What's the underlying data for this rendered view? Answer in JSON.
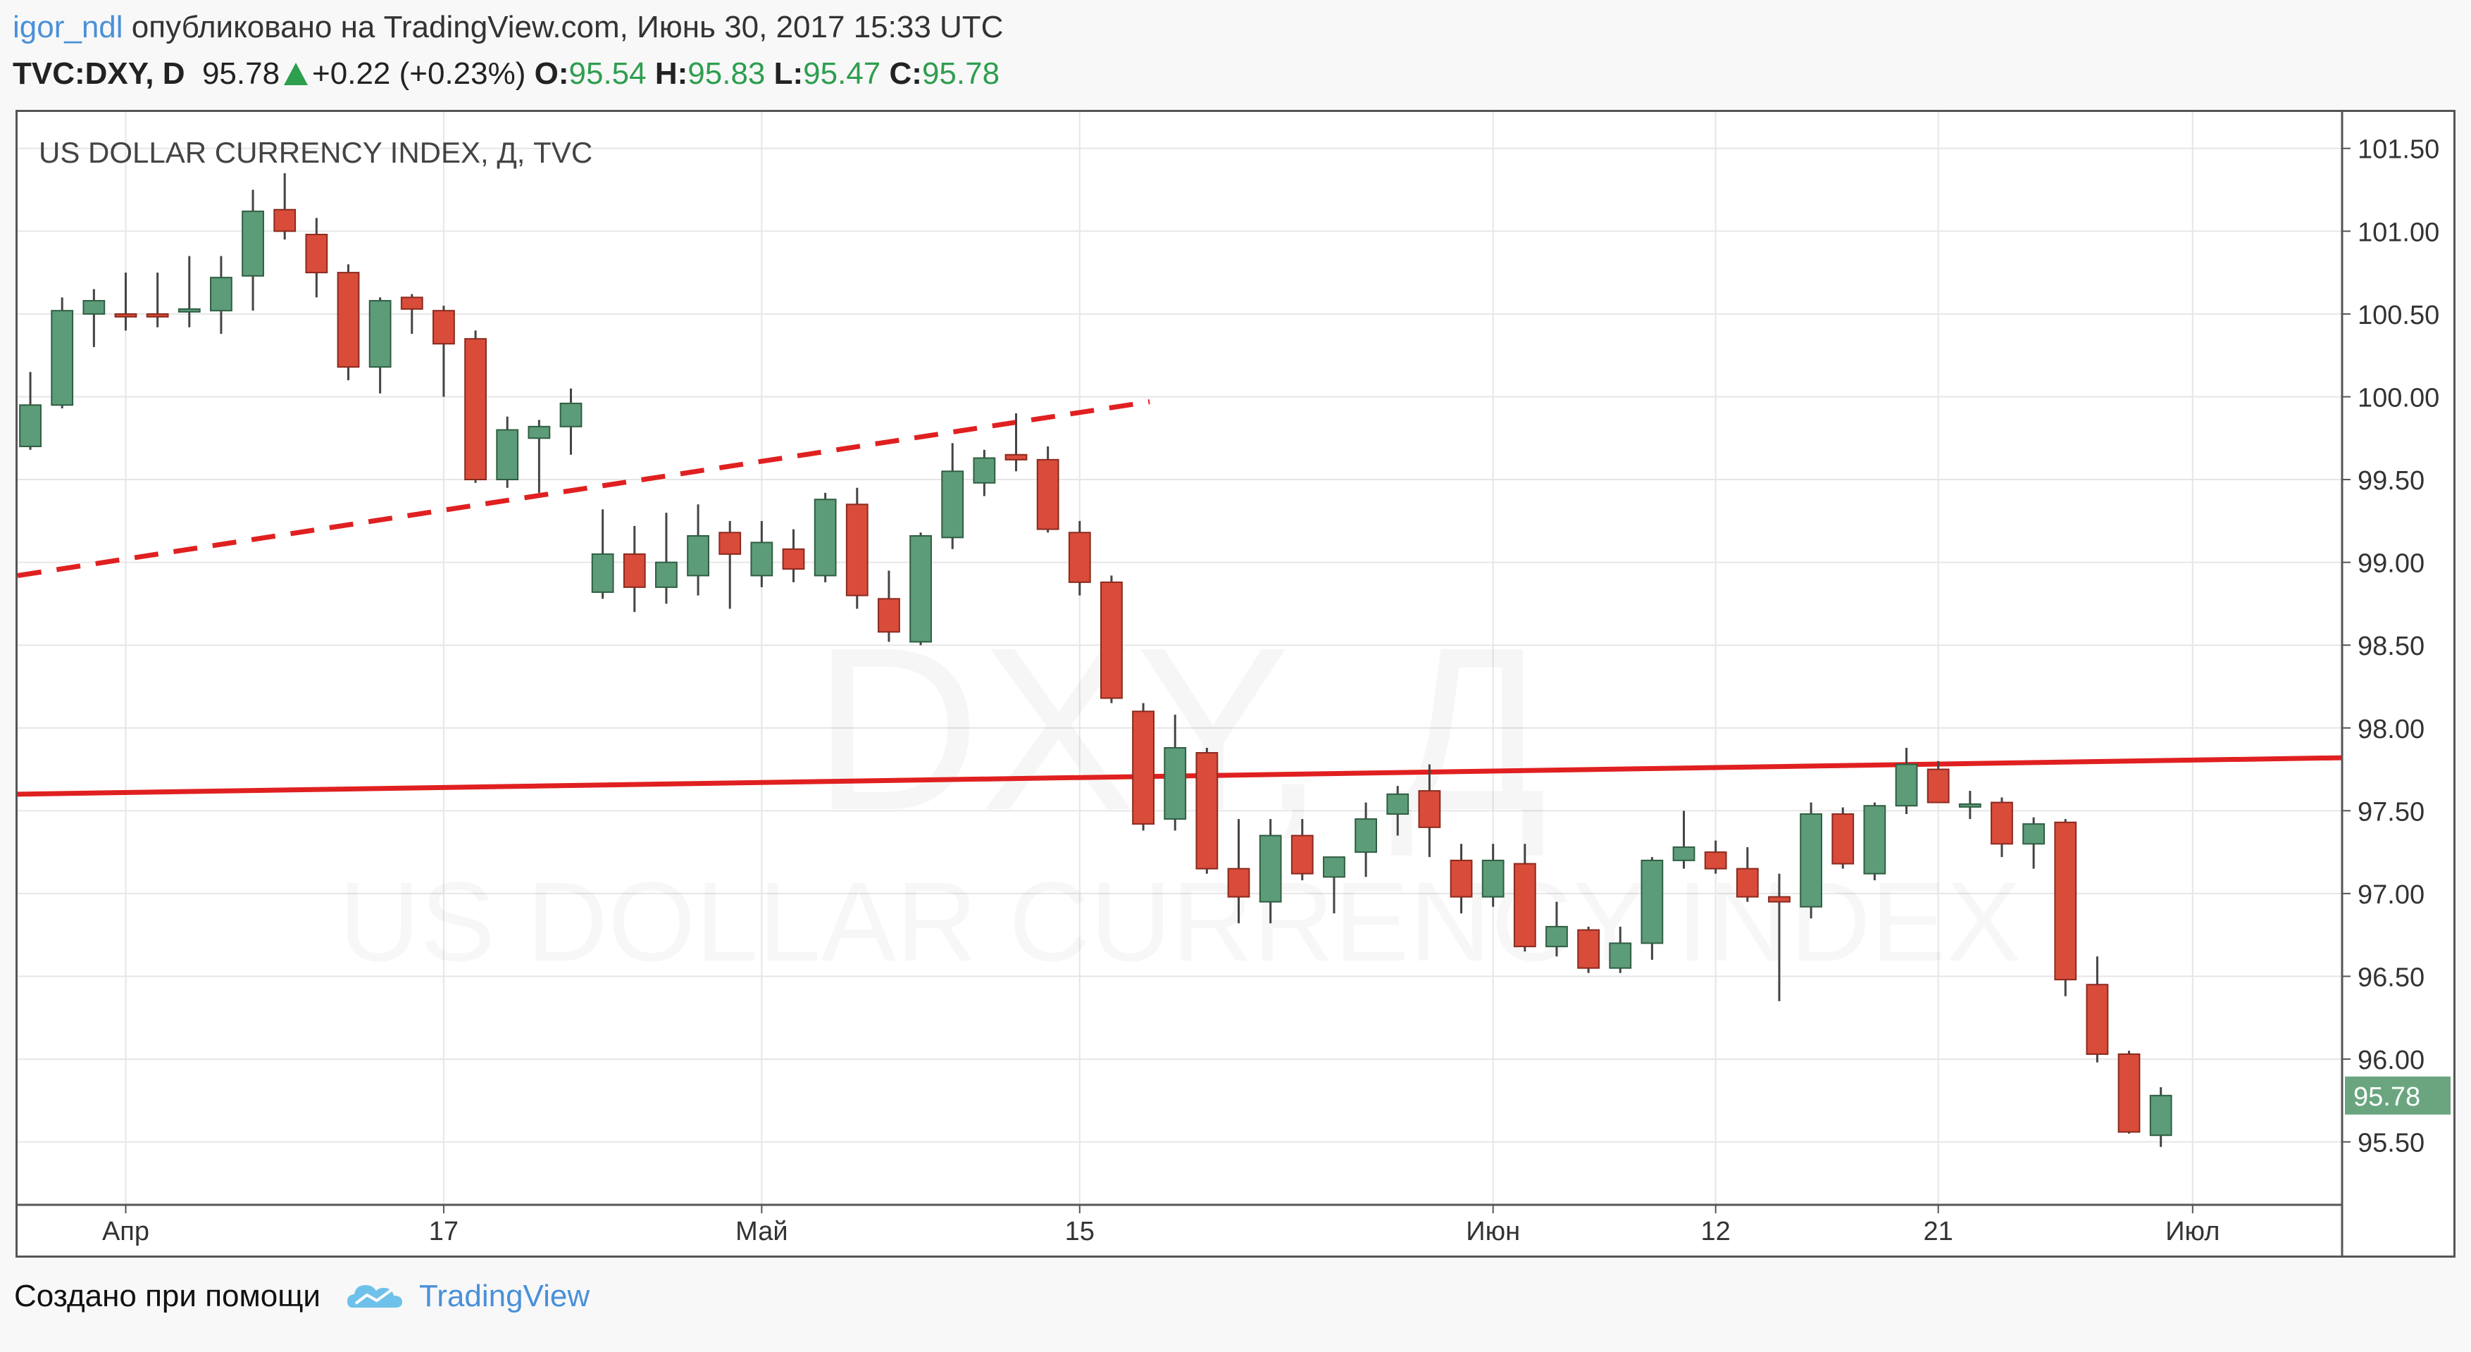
{
  "header": {
    "user": "igor_ndl",
    "published": "опубликовано на TradingView.com, Июнь 30, 2017 15:33 UTC",
    "symbol": "TVC:DXY, D",
    "last": "95.78",
    "change": "+0.22 (+0.23%)",
    "o_label": "O:",
    "o": "95.54",
    "h_label": "H:",
    "h": "95.83",
    "l_label": "L:",
    "l": "95.47",
    "c_label": "C:",
    "c": "95.78"
  },
  "footer": {
    "created_with": "Создано при помощи",
    "brand": "TradingView"
  },
  "colors": {
    "up": "#5d9c78",
    "down": "#d94c3a",
    "trendline": "#e02020",
    "grid": "#e6e6e6",
    "price_badge": "#6aa57f"
  },
  "chart_data": {
    "type": "candlestick",
    "title": "US DOLLAR CURRENCY INDEX, Д, TVC",
    "watermark_symbol": "DXY, Д",
    "watermark_name": "US DOLLAR CURRENCY INDEX",
    "x_ticks": [
      {
        "label": "Апр",
        "index": 3
      },
      {
        "label": "17",
        "index": 13
      },
      {
        "label": "Май",
        "index": 23
      },
      {
        "label": "15",
        "index": 33
      },
      {
        "label": "Июн",
        "index": 46
      },
      {
        "label": "12",
        "index": 53
      },
      {
        "label": "21",
        "index": 60
      },
      {
        "label": "Июл",
        "index": 68
      }
    ],
    "y_ticks": [
      "101.50",
      "101.00",
      "100.50",
      "100.00",
      "99.50",
      "99.00",
      "98.50",
      "98.00",
      "97.50",
      "97.00",
      "96.50",
      "96.00",
      "95.50"
    ],
    "ylim": [
      95.12,
      101.72
    ],
    "x_range": [
      -0.4,
      72.7
    ],
    "last_price_label": "95.78",
    "last_price": 95.78,
    "candles": [
      {
        "i": 0,
        "o": 99.7,
        "h": 100.15,
        "l": 99.68,
        "c": 99.95
      },
      {
        "i": 1,
        "o": 99.95,
        "h": 100.6,
        "l": 99.93,
        "c": 100.52
      },
      {
        "i": 2,
        "o": 100.5,
        "h": 100.65,
        "l": 100.3,
        "c": 100.58
      },
      {
        "i": 3,
        "o": 100.5,
        "h": 100.75,
        "l": 100.4,
        "c": 100.49
      },
      {
        "i": 4,
        "o": 100.5,
        "h": 100.75,
        "l": 100.42,
        "c": 100.49
      },
      {
        "i": 5,
        "o": 100.52,
        "h": 100.85,
        "l": 100.42,
        "c": 100.53
      },
      {
        "i": 6,
        "o": 100.52,
        "h": 100.85,
        "l": 100.38,
        "c": 100.72
      },
      {
        "i": 7,
        "o": 100.73,
        "h": 101.25,
        "l": 100.52,
        "c": 101.12
      },
      {
        "i": 8,
        "o": 101.13,
        "h": 101.35,
        "l": 100.95,
        "c": 101.0
      },
      {
        "i": 9,
        "o": 100.98,
        "h": 101.08,
        "l": 100.6,
        "c": 100.75
      },
      {
        "i": 10,
        "o": 100.75,
        "h": 100.8,
        "l": 100.1,
        "c": 100.18
      },
      {
        "i": 11,
        "o": 100.18,
        "h": 100.6,
        "l": 100.02,
        "c": 100.58
      },
      {
        "i": 12,
        "o": 100.6,
        "h": 100.62,
        "l": 100.38,
        "c": 100.53
      },
      {
        "i": 13,
        "o": 100.52,
        "h": 100.55,
        "l": 100.0,
        "c": 100.32
      },
      {
        "i": 14,
        "o": 100.35,
        "h": 100.4,
        "l": 99.48,
        "c": 99.5
      },
      {
        "i": 15,
        "o": 99.5,
        "h": 99.88,
        "l": 99.45,
        "c": 99.8
      },
      {
        "i": 16,
        "o": 99.75,
        "h": 99.86,
        "l": 99.42,
        "c": 99.82
      },
      {
        "i": 17,
        "o": 99.82,
        "h": 100.05,
        "l": 99.65,
        "c": 99.96
      },
      {
        "i": 18,
        "o": 98.82,
        "h": 99.32,
        "l": 98.78,
        "c": 99.05
      },
      {
        "i": 19,
        "o": 99.05,
        "h": 99.22,
        "l": 98.7,
        "c": 98.85
      },
      {
        "i": 20,
        "o": 98.85,
        "h": 99.3,
        "l": 98.75,
        "c": 99.0
      },
      {
        "i": 21,
        "o": 98.92,
        "h": 99.35,
        "l": 98.8,
        "c": 99.16
      },
      {
        "i": 22,
        "o": 99.18,
        "h": 99.25,
        "l": 98.72,
        "c": 99.05
      },
      {
        "i": 23,
        "o": 98.92,
        "h": 99.25,
        "l": 98.85,
        "c": 99.12
      },
      {
        "i": 24,
        "o": 99.08,
        "h": 99.2,
        "l": 98.88,
        "c": 98.96
      },
      {
        "i": 25,
        "o": 98.92,
        "h": 99.42,
        "l": 98.88,
        "c": 99.38
      },
      {
        "i": 26,
        "o": 99.35,
        "h": 99.45,
        "l": 98.72,
        "c": 98.8
      },
      {
        "i": 27,
        "o": 98.78,
        "h": 98.95,
        "l": 98.52,
        "c": 98.58
      },
      {
        "i": 28,
        "o": 98.52,
        "h": 99.18,
        "l": 98.5,
        "c": 99.16
      },
      {
        "i": 29,
        "o": 99.15,
        "h": 99.72,
        "l": 99.08,
        "c": 99.55
      },
      {
        "i": 30,
        "o": 99.48,
        "h": 99.68,
        "l": 99.4,
        "c": 99.63
      },
      {
        "i": 31,
        "o": 99.65,
        "h": 99.9,
        "l": 99.55,
        "c": 99.62
      },
      {
        "i": 32,
        "o": 99.62,
        "h": 99.7,
        "l": 99.18,
        "c": 99.2
      },
      {
        "i": 33,
        "o": 99.18,
        "h": 99.25,
        "l": 98.8,
        "c": 98.88
      },
      {
        "i": 34,
        "o": 98.88,
        "h": 98.92,
        "l": 98.15,
        "c": 98.18
      },
      {
        "i": 35,
        "o": 98.1,
        "h": 98.15,
        "l": 97.38,
        "c": 97.42
      },
      {
        "i": 36,
        "o": 97.45,
        "h": 98.08,
        "l": 97.38,
        "c": 97.88
      },
      {
        "i": 37,
        "o": 97.85,
        "h": 97.88,
        "l": 97.12,
        "c": 97.15
      },
      {
        "i": 38,
        "o": 97.15,
        "h": 97.45,
        "l": 96.82,
        "c": 96.98
      },
      {
        "i": 39,
        "o": 96.95,
        "h": 97.45,
        "l": 96.82,
        "c": 97.35
      },
      {
        "i": 40,
        "o": 97.35,
        "h": 97.45,
        "l": 97.08,
        "c": 97.12
      },
      {
        "i": 41,
        "o": 97.1,
        "h": 97.2,
        "l": 96.88,
        "c": 97.22
      },
      {
        "i": 42,
        "o": 97.25,
        "h": 97.55,
        "l": 97.1,
        "c": 97.45
      },
      {
        "i": 43,
        "o": 97.48,
        "h": 97.65,
        "l": 97.35,
        "c": 97.6
      },
      {
        "i": 44,
        "o": 97.62,
        "h": 97.78,
        "l": 97.22,
        "c": 97.4
      },
      {
        "i": 45,
        "o": 97.2,
        "h": 97.3,
        "l": 96.88,
        "c": 96.98
      },
      {
        "i": 46,
        "o": 96.98,
        "h": 97.3,
        "l": 96.92,
        "c": 97.2
      },
      {
        "i": 47,
        "o": 97.18,
        "h": 97.3,
        "l": 96.65,
        "c": 96.68
      },
      {
        "i": 48,
        "o": 96.68,
        "h": 96.95,
        "l": 96.62,
        "c": 96.8
      },
      {
        "i": 49,
        "o": 96.78,
        "h": 96.8,
        "l": 96.52,
        "c": 96.55
      },
      {
        "i": 50,
        "o": 96.55,
        "h": 96.8,
        "l": 96.52,
        "c": 96.7
      },
      {
        "i": 51,
        "o": 96.7,
        "h": 97.22,
        "l": 96.6,
        "c": 97.2
      },
      {
        "i": 52,
        "o": 97.2,
        "h": 97.5,
        "l": 97.15,
        "c": 97.28
      },
      {
        "i": 53,
        "o": 97.25,
        "h": 97.32,
        "l": 97.12,
        "c": 97.15
      },
      {
        "i": 54,
        "o": 97.15,
        "h": 97.28,
        "l": 96.95,
        "c": 96.98
      },
      {
        "i": 55,
        "o": 96.98,
        "h": 97.12,
        "l": 96.35,
        "c": 96.95
      },
      {
        "i": 56,
        "o": 96.92,
        "h": 97.55,
        "l": 96.85,
        "c": 97.48
      },
      {
        "i": 57,
        "o": 97.48,
        "h": 97.52,
        "l": 97.15,
        "c": 97.18
      },
      {
        "i": 58,
        "o": 97.12,
        "h": 97.55,
        "l": 97.08,
        "c": 97.53
      },
      {
        "i": 59,
        "o": 97.53,
        "h": 97.88,
        "l": 97.48,
        "c": 97.78
      },
      {
        "i": 60,
        "o": 97.75,
        "h": 97.8,
        "l": 97.55,
        "c": 97.55
      },
      {
        "i": 61,
        "o": 97.54,
        "h": 97.62,
        "l": 97.45,
        "c": 97.54
      },
      {
        "i": 62,
        "o": 97.55,
        "h": 97.58,
        "l": 97.22,
        "c": 97.3
      },
      {
        "i": 63,
        "o": 97.3,
        "h": 97.46,
        "l": 97.15,
        "c": 97.42
      },
      {
        "i": 64,
        "o": 97.43,
        "h": 97.45,
        "l": 96.38,
        "c": 96.48
      },
      {
        "i": 65,
        "o": 96.45,
        "h": 96.62,
        "l": 95.98,
        "c": 96.03
      },
      {
        "i": 66,
        "o": 96.03,
        "h": 96.05,
        "l": 95.55,
        "c": 95.56
      },
      {
        "i": 67,
        "o": 95.54,
        "h": 95.83,
        "l": 95.47,
        "c": 95.78
      }
    ],
    "trendlines": [
      {
        "style": "dashed",
        "from": {
          "index": -0.4,
          "price": 98.92
        },
        "to": {
          "index": 35.2,
          "price": 99.97
        }
      },
      {
        "style": "solid",
        "from": {
          "index": -0.4,
          "price": 97.6
        },
        "to": {
          "index": 72.7,
          "price": 97.82
        }
      }
    ]
  }
}
